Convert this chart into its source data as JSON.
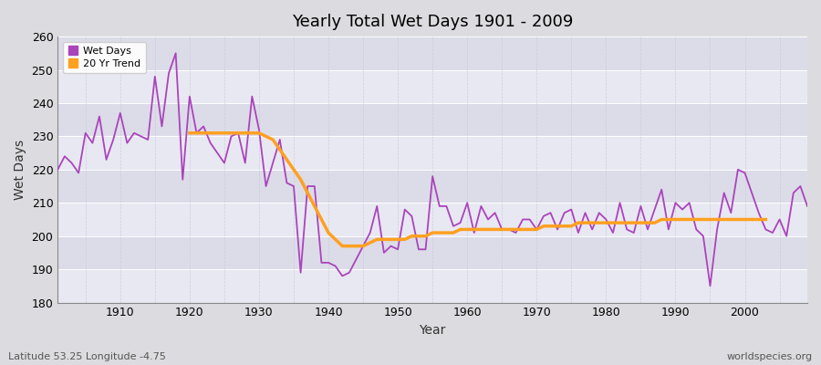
{
  "title": "Yearly Total Wet Days 1901 - 2009",
  "xlabel": "Year",
  "ylabel": "Wet Days",
  "subtitle": "Latitude 53.25 Longitude -4.75",
  "watermark": "worldspecies.org",
  "ylim": [
    180,
    260
  ],
  "xlim": [
    1901,
    2009
  ],
  "yticks": [
    180,
    190,
    200,
    210,
    220,
    230,
    240,
    250,
    260
  ],
  "wet_days_color": "#AA44BB",
  "trend_color": "#FFA020",
  "bg_color": "#DCDCE8",
  "plot_bg": "#E8E8F0",
  "legend_wet": "Wet Days",
  "legend_trend": "20 Yr Trend",
  "years": [
    1901,
    1902,
    1903,
    1904,
    1905,
    1906,
    1907,
    1908,
    1909,
    1910,
    1911,
    1912,
    1913,
    1914,
    1915,
    1916,
    1917,
    1918,
    1919,
    1920,
    1921,
    1922,
    1923,
    1924,
    1925,
    1926,
    1927,
    1928,
    1929,
    1930,
    1931,
    1932,
    1933,
    1934,
    1935,
    1936,
    1937,
    1938,
    1939,
    1940,
    1941,
    1942,
    1943,
    1944,
    1945,
    1946,
    1947,
    1948,
    1949,
    1950,
    1951,
    1952,
    1953,
    1954,
    1955,
    1956,
    1957,
    1958,
    1959,
    1960,
    1961,
    1962,
    1963,
    1964,
    1965,
    1966,
    1967,
    1968,
    1969,
    1970,
    1971,
    1972,
    1973,
    1974,
    1975,
    1976,
    1977,
    1978,
    1979,
    1980,
    1981,
    1982,
    1983,
    1984,
    1985,
    1986,
    1987,
    1988,
    1989,
    1990,
    1991,
    1992,
    1993,
    1994,
    1995,
    1996,
    1997,
    1998,
    1999,
    2000,
    2001,
    2002,
    2003,
    2004,
    2005,
    2006,
    2007,
    2008,
    2009
  ],
  "wet_days": [
    220,
    224,
    222,
    219,
    231,
    228,
    236,
    223,
    229,
    237,
    228,
    231,
    230,
    229,
    248,
    233,
    249,
    255,
    217,
    242,
    231,
    233,
    228,
    225,
    222,
    230,
    231,
    222,
    242,
    232,
    215,
    222,
    229,
    216,
    215,
    189,
    215,
    215,
    192,
    192,
    191,
    188,
    189,
    193,
    197,
    201,
    209,
    195,
    197,
    196,
    208,
    206,
    196,
    196,
    218,
    209,
    209,
    203,
    204,
    210,
    201,
    209,
    205,
    207,
    202,
    202,
    201,
    205,
    205,
    202,
    206,
    207,
    202,
    207,
    208,
    201,
    207,
    202,
    207,
    205,
    201,
    210,
    202,
    201,
    209,
    202,
    208,
    214,
    202,
    210,
    208,
    210,
    202,
    200,
    185,
    202,
    213,
    207,
    220,
    219,
    213,
    207,
    202,
    201,
    205,
    200,
    213,
    215,
    209
  ],
  "trend": [
    null,
    null,
    null,
    null,
    null,
    null,
    null,
    null,
    null,
    null,
    null,
    null,
    null,
    null,
    null,
    null,
    null,
    null,
    null,
    231,
    231,
    231,
    231,
    231,
    231,
    231,
    231,
    231,
    231,
    231,
    230,
    229,
    226,
    223,
    220,
    217,
    213,
    209,
    205,
    201,
    199,
    197,
    197,
    197,
    197,
    198,
    199,
    199,
    199,
    199,
    199,
    200,
    200,
    200,
    201,
    201,
    201,
    201,
    202,
    202,
    202,
    202,
    202,
    202,
    202,
    202,
    202,
    202,
    202,
    202,
    203,
    203,
    203,
    203,
    203,
    204,
    204,
    204,
    204,
    204,
    204,
    204,
    204,
    204,
    204,
    204,
    204,
    205,
    205,
    205,
    205,
    205,
    205,
    205,
    205,
    205,
    205,
    205,
    205,
    205,
    205,
    205,
    205,
    null,
    null,
    null,
    null,
    null,
    null
  ]
}
